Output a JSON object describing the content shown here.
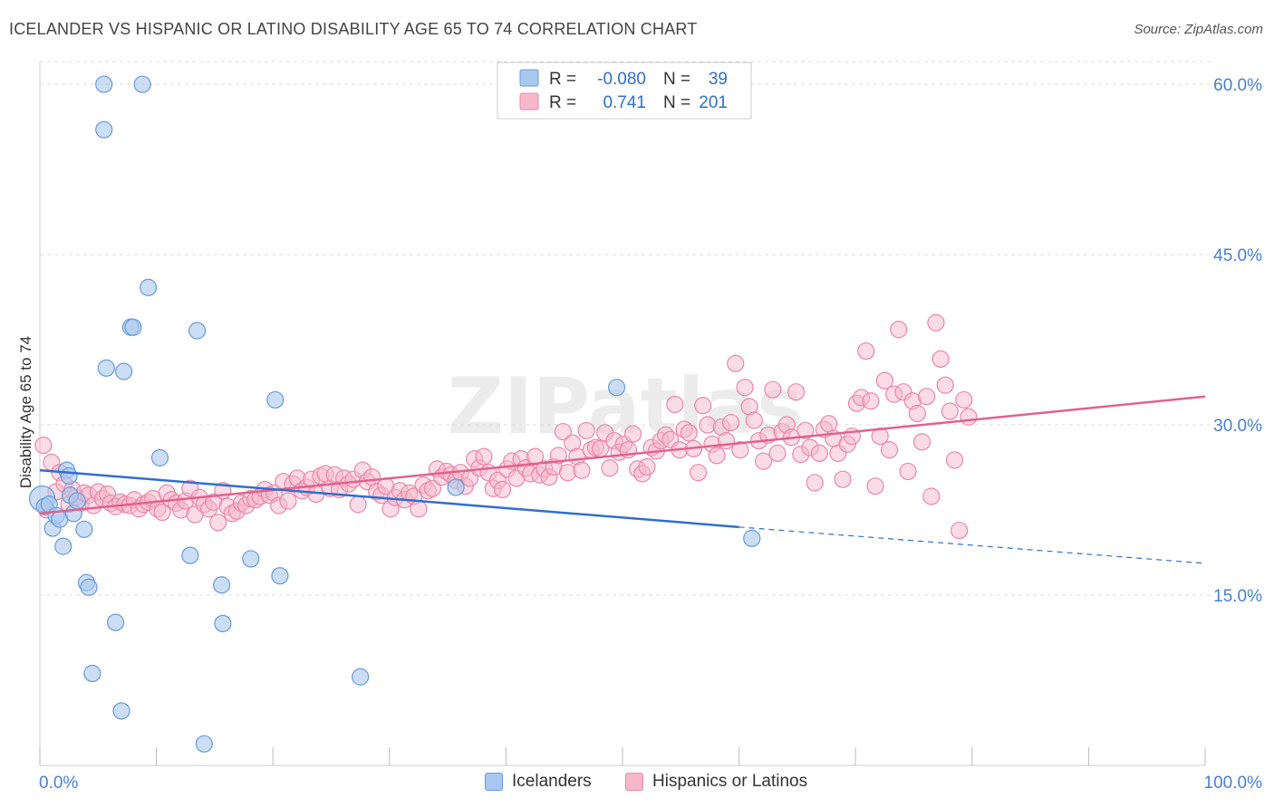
{
  "title": "ICELANDER VS HISPANIC OR LATINO DISABILITY AGE 65 TO 74 CORRELATION CHART",
  "source": "Source: ZipAtlas.com",
  "watermark": "ZIPatlas",
  "colors": {
    "blue_fill": "#a9c8f0",
    "blue_stroke": "#6a9ad8",
    "blue_line": "#2f6fcc",
    "pink_fill": "#f7b8cc",
    "pink_stroke": "#e88aa8",
    "pink_line": "#e0628d",
    "axis_text": "#4a7fd0",
    "grid": "#dddddd"
  },
  "stats": {
    "r_label": "R =",
    "n_label": "N =",
    "blue": {
      "r": "-0.080",
      "n": "39"
    },
    "pink": {
      "r": "0.741",
      "n": "201"
    }
  },
  "chart_data": {
    "type": "scatter",
    "title": "ICELANDER VS HISPANIC OR LATINO DISABILITY AGE 65 TO 74 CORRELATION CHART",
    "xlabel": "",
    "ylabel": "Disability Age 65 to 74",
    "xlim": [
      0,
      100
    ],
    "ylim": [
      0,
      62
    ],
    "x_tick_labels": [
      "0.0%",
      "100.0%"
    ],
    "y_ticks": [
      15,
      30,
      45,
      60
    ],
    "y_tick_labels": [
      "15.0%",
      "30.0%",
      "45.0%",
      "60.0%"
    ],
    "grid": true,
    "legend_placement": "bottom-center",
    "series": [
      {
        "name": "Icelanders",
        "points": [
          [
            0.2,
            23.5
          ],
          [
            0.4,
            22.8
          ],
          [
            0.8,
            23.0
          ],
          [
            1.1,
            20.9
          ],
          [
            1.4,
            22.0
          ],
          [
            1.7,
            21.7
          ],
          [
            2.0,
            19.3
          ],
          [
            2.3,
            26.0
          ],
          [
            2.6,
            23.8
          ],
          [
            2.9,
            22.2
          ],
          [
            3.2,
            23.3
          ],
          [
            3.8,
            20.8
          ],
          [
            4.0,
            16.1
          ],
          [
            4.2,
            15.7
          ],
          [
            4.5,
            8.1
          ],
          [
            5.5,
            60.0
          ],
          [
            5.7,
            35.0
          ],
          [
            6.5,
            12.6
          ],
          [
            7.2,
            34.7
          ],
          [
            7.0,
            4.8
          ],
          [
            7.8,
            38.6
          ],
          [
            8.0,
            38.6
          ],
          [
            8.8,
            60.0
          ],
          [
            9.3,
            42.1
          ],
          [
            10.3,
            27.1
          ],
          [
            12.9,
            18.5
          ],
          [
            13.5,
            38.3
          ],
          [
            14.1,
            1.9
          ],
          [
            15.6,
            15.9
          ],
          [
            15.7,
            12.5
          ],
          [
            5.5,
            56.0
          ],
          [
            18.1,
            18.2
          ],
          [
            20.2,
            32.2
          ],
          [
            20.6,
            16.7
          ],
          [
            27.5,
            7.8
          ],
          [
            35.7,
            24.5
          ],
          [
            49.5,
            33.3
          ],
          [
            61.1,
            20.0
          ],
          [
            2.5,
            25.5
          ]
        ]
      },
      {
        "name": "Hispanics or Latinos",
        "points": [
          [
            0.3,
            28.2
          ],
          [
            0.6,
            22.5
          ],
          [
            1.0,
            26.7
          ],
          [
            1.4,
            24.1
          ],
          [
            1.7,
            25.8
          ],
          [
            2.1,
            24.8
          ],
          [
            2.5,
            23.0
          ],
          [
            2.8,
            24.3
          ],
          [
            3.1,
            23.6
          ],
          [
            3.5,
            23.1
          ],
          [
            3.8,
            24.0
          ],
          [
            4.2,
            23.8
          ],
          [
            4.6,
            22.9
          ],
          [
            5.0,
            24.1
          ],
          [
            5.4,
            23.5
          ],
          [
            5.8,
            23.9
          ],
          [
            6.1,
            23.1
          ],
          [
            6.5,
            22.8
          ],
          [
            6.9,
            23.2
          ],
          [
            7.3,
            23.0
          ],
          [
            7.7,
            22.9
          ],
          [
            8.1,
            23.4
          ],
          [
            8.5,
            22.6
          ],
          [
            8.9,
            23.0
          ],
          [
            9.3,
            23.2
          ],
          [
            9.7,
            23.5
          ],
          [
            10.1,
            22.6
          ],
          [
            10.5,
            22.3
          ],
          [
            10.9,
            24.0
          ],
          [
            11.3,
            23.4
          ],
          [
            11.7,
            23.1
          ],
          [
            12.1,
            22.5
          ],
          [
            12.5,
            23.3
          ],
          [
            12.9,
            24.4
          ],
          [
            13.3,
            22.1
          ],
          [
            13.7,
            23.6
          ],
          [
            14.1,
            23.0
          ],
          [
            14.5,
            22.6
          ],
          [
            14.9,
            23.2
          ],
          [
            15.3,
            21.4
          ],
          [
            15.7,
            24.2
          ],
          [
            16.1,
            22.8
          ],
          [
            16.5,
            22.2
          ],
          [
            16.9,
            22.4
          ],
          [
            17.3,
            23.1
          ],
          [
            17.7,
            22.9
          ],
          [
            18.1,
            23.5
          ],
          [
            18.5,
            23.4
          ],
          [
            18.9,
            23.7
          ],
          [
            19.3,
            24.3
          ],
          [
            19.7,
            23.8
          ],
          [
            20.1,
            24.0
          ],
          [
            20.5,
            22.9
          ],
          [
            20.9,
            25.0
          ],
          [
            21.3,
            23.3
          ],
          [
            21.7,
            24.8
          ],
          [
            22.1,
            25.3
          ],
          [
            22.5,
            24.2
          ],
          [
            22.9,
            24.5
          ],
          [
            23.3,
            25.2
          ],
          [
            23.7,
            23.9
          ],
          [
            24.1,
            25.5
          ],
          [
            24.5,
            25.7
          ],
          [
            24.9,
            24.4
          ],
          [
            25.3,
            25.6
          ],
          [
            25.7,
            24.3
          ],
          [
            26.1,
            25.3
          ],
          [
            26.5,
            24.8
          ],
          [
            26.9,
            25.2
          ],
          [
            27.3,
            23.0
          ],
          [
            27.7,
            26.0
          ],
          [
            28.1,
            25.0
          ],
          [
            28.5,
            25.4
          ],
          [
            28.9,
            24.1
          ],
          [
            29.3,
            23.8
          ],
          [
            29.7,
            24.6
          ],
          [
            30.1,
            22.6
          ],
          [
            30.5,
            23.6
          ],
          [
            30.9,
            24.2
          ],
          [
            31.3,
            23.4
          ],
          [
            31.7,
            24.0
          ],
          [
            32.1,
            23.7
          ],
          [
            32.5,
            22.6
          ],
          [
            32.9,
            24.7
          ],
          [
            33.3,
            24.2
          ],
          [
            33.7,
            24.4
          ],
          [
            34.1,
            26.1
          ],
          [
            34.5,
            25.4
          ],
          [
            34.9,
            25.9
          ],
          [
            35.3,
            25.6
          ],
          [
            35.7,
            25.1
          ],
          [
            36.1,
            25.8
          ],
          [
            36.5,
            24.6
          ],
          [
            36.9,
            25.3
          ],
          [
            37.3,
            27.0
          ],
          [
            37.7,
            26.2
          ],
          [
            38.1,
            27.2
          ],
          [
            38.5,
            25.8
          ],
          [
            38.9,
            24.4
          ],
          [
            39.3,
            25.1
          ],
          [
            39.7,
            24.3
          ],
          [
            40.1,
            26.1
          ],
          [
            40.5,
            26.8
          ],
          [
            40.9,
            25.3
          ],
          [
            41.3,
            27.0
          ],
          [
            41.7,
            26.2
          ],
          [
            42.1,
            25.7
          ],
          [
            42.5,
            27.2
          ],
          [
            42.9,
            25.6
          ],
          [
            43.3,
            26.1
          ],
          [
            43.7,
            25.4
          ],
          [
            44.1,
            26.3
          ],
          [
            44.5,
            27.3
          ],
          [
            44.9,
            29.4
          ],
          [
            45.3,
            25.8
          ],
          [
            45.7,
            28.4
          ],
          [
            46.1,
            27.2
          ],
          [
            46.5,
            26.0
          ],
          [
            46.9,
            29.5
          ],
          [
            47.3,
            27.8
          ],
          [
            47.7,
            28.0
          ],
          [
            48.1,
            27.9
          ],
          [
            48.5,
            29.3
          ],
          [
            48.9,
            26.2
          ],
          [
            49.3,
            28.6
          ],
          [
            49.7,
            27.6
          ],
          [
            50.1,
            28.3
          ],
          [
            50.5,
            27.8
          ],
          [
            50.9,
            29.2
          ],
          [
            51.3,
            26.1
          ],
          [
            51.7,
            25.7
          ],
          [
            52.1,
            26.3
          ],
          [
            52.5,
            28.0
          ],
          [
            52.9,
            27.7
          ],
          [
            53.3,
            28.6
          ],
          [
            53.7,
            29.1
          ],
          [
            54.1,
            28.7
          ],
          [
            54.5,
            31.8
          ],
          [
            54.9,
            27.8
          ],
          [
            55.3,
            29.6
          ],
          [
            55.7,
            29.3
          ],
          [
            56.1,
            27.9
          ],
          [
            56.5,
            25.8
          ],
          [
            56.9,
            31.7
          ],
          [
            57.3,
            30.0
          ],
          [
            57.7,
            28.3
          ],
          [
            58.1,
            27.3
          ],
          [
            58.5,
            29.8
          ],
          [
            58.9,
            28.6
          ],
          [
            59.3,
            30.2
          ],
          [
            59.7,
            35.4
          ],
          [
            60.1,
            27.8
          ],
          [
            60.5,
            33.3
          ],
          [
            60.9,
            31.6
          ],
          [
            61.3,
            30.4
          ],
          [
            61.7,
            28.6
          ],
          [
            62.1,
            26.8
          ],
          [
            62.5,
            29.1
          ],
          [
            62.9,
            33.1
          ],
          [
            63.3,
            27.5
          ],
          [
            63.7,
            29.4
          ],
          [
            64.1,
            30.0
          ],
          [
            64.5,
            28.9
          ],
          [
            64.9,
            32.9
          ],
          [
            65.3,
            27.4
          ],
          [
            65.7,
            29.5
          ],
          [
            66.1,
            28.0
          ],
          [
            66.5,
            24.9
          ],
          [
            66.9,
            27.5
          ],
          [
            67.3,
            29.6
          ],
          [
            67.7,
            30.1
          ],
          [
            68.1,
            28.8
          ],
          [
            68.5,
            27.5
          ],
          [
            68.9,
            25.2
          ],
          [
            69.3,
            28.3
          ],
          [
            69.7,
            29.0
          ],
          [
            70.1,
            31.9
          ],
          [
            70.5,
            32.4
          ],
          [
            70.9,
            36.5
          ],
          [
            71.3,
            32.1
          ],
          [
            71.7,
            24.6
          ],
          [
            72.1,
            29.0
          ],
          [
            72.5,
            33.9
          ],
          [
            72.9,
            27.8
          ],
          [
            73.3,
            32.7
          ],
          [
            73.7,
            38.4
          ],
          [
            74.1,
            32.9
          ],
          [
            74.5,
            25.9
          ],
          [
            74.9,
            32.1
          ],
          [
            75.3,
            31.0
          ],
          [
            75.7,
            28.5
          ],
          [
            76.1,
            32.5
          ],
          [
            76.5,
            23.7
          ],
          [
            76.9,
            39.0
          ],
          [
            77.3,
            35.8
          ],
          [
            77.7,
            33.5
          ],
          [
            78.1,
            31.2
          ],
          [
            78.5,
            26.9
          ],
          [
            78.9,
            20.7
          ],
          [
            79.3,
            32.2
          ],
          [
            79.7,
            30.7
          ]
        ]
      }
    ],
    "trend_lines": [
      {
        "series": "Icelanders",
        "x": [
          0,
          60
        ],
        "y": [
          26.0,
          21.0
        ],
        "dashed_extension_to": [
          100,
          17.8
        ]
      },
      {
        "series": "Hispanics or Latinos",
        "x": [
          0,
          100
        ],
        "y": [
          22.2,
          32.5
        ]
      }
    ]
  },
  "legend": {
    "blue_label": "Icelanders",
    "pink_label": "Hispanics or Latinos"
  }
}
